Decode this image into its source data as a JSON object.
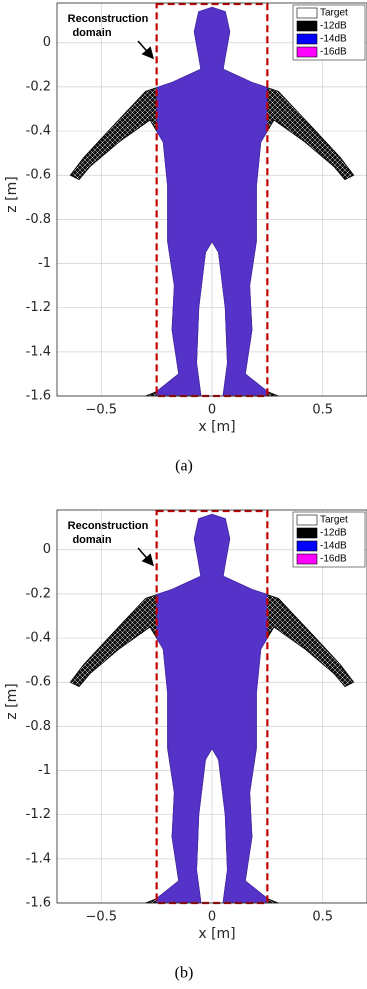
{
  "chart_data": [
    {
      "type": "mesh",
      "caption": "(a)",
      "xlabel": "x [m]",
      "ylabel": "z [m]",
      "xlim": [
        -0.7,
        0.7
      ],
      "ylim": [
        -1.6,
        0.18
      ],
      "xticks": [
        {
          "value": -0.5,
          "label": "−0.5"
        },
        0,
        0.5
      ],
      "yticks": [
        0,
        -0.2,
        -0.4,
        -0.6,
        -0.8,
        -1,
        -1.2,
        -1.4,
        -1.6
      ],
      "grid": true,
      "annotation": [
        "Reconstruction",
        "domain"
      ],
      "domain_box": {
        "x": [
          -0.25,
          0.25
        ],
        "z": [
          -1.6,
          0.18
        ],
        "color": "#c00000"
      },
      "legend": "upper right",
      "series": [
        {
          "name": "Target",
          "color": "#ffffff"
        },
        {
          "name": "-12dB",
          "color": "#000000"
        },
        {
          "name": "-14dB",
          "color": "#0000ff"
        },
        {
          "name": "-16dB",
          "color": "#ff00ff"
        }
      ]
    },
    {
      "type": "mesh",
      "caption": "(b)",
      "xlabel": "x [m]",
      "ylabel": "z [m]",
      "xlim": [
        -0.7,
        0.7
      ],
      "ylim": [
        -1.6,
        0.18
      ],
      "xticks": [
        {
          "value": -0.5,
          "label": "−0.5"
        },
        0,
        0.5
      ],
      "yticks": [
        0,
        -0.2,
        -0.4,
        -0.6,
        -0.8,
        -1,
        -1.2,
        -1.4,
        -1.6
      ],
      "grid": true,
      "annotation": [
        "Reconstruction",
        "domain"
      ],
      "domain_box": {
        "x": [
          -0.25,
          0.25
        ],
        "z": [
          -1.6,
          0.18
        ],
        "color": "#c00000"
      },
      "legend": "upper right",
      "series": [
        {
          "name": "Target",
          "color": "#ffffff"
        },
        {
          "name": "-12dB",
          "color": "#000000"
        },
        {
          "name": "-14dB",
          "color": "#0000ff"
        },
        {
          "name": "-16dB",
          "color": "#ff00ff"
        }
      ]
    }
  ]
}
